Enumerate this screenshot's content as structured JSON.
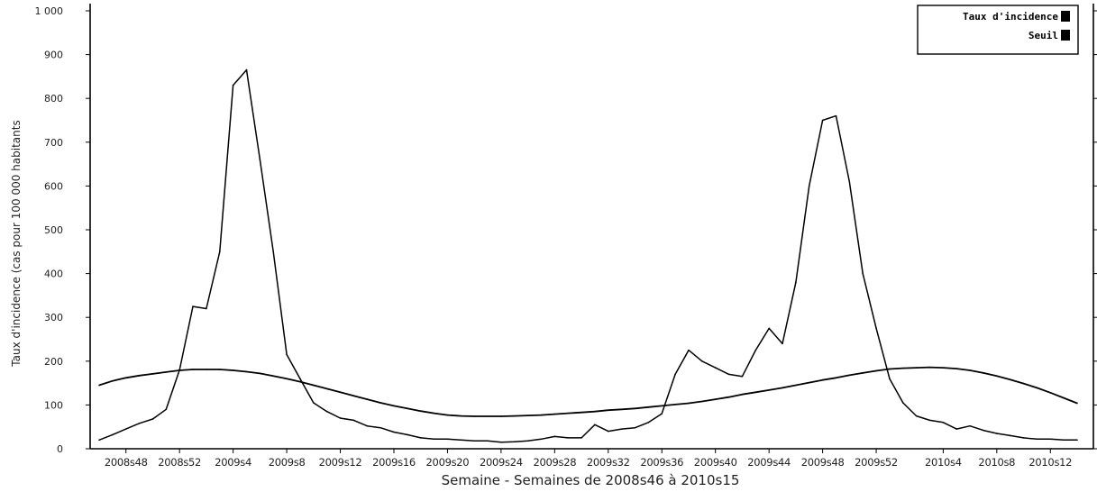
{
  "chart_data": {
    "type": "line",
    "title": "",
    "xlabel": "Semaine - Semaines de 2008s46 à 2010s15",
    "ylabel": "Taux d'incidence (cas pour 100 000 habitants",
    "ylim": [
      0,
      1000
    ],
    "yticks": [
      "0",
      "100",
      "200",
      "300",
      "400",
      "500",
      "600",
      "700",
      "800",
      "900",
      "1 000"
    ],
    "xticks": [
      {
        "week": 2,
        "label": "2008s48"
      },
      {
        "week": 6,
        "label": "2008s52"
      },
      {
        "week": 10,
        "label": "2009s4"
      },
      {
        "week": 14,
        "label": "2009s8"
      },
      {
        "week": 18,
        "label": "2009s12"
      },
      {
        "week": 22,
        "label": "2009s16"
      },
      {
        "week": 26,
        "label": "2009s20"
      },
      {
        "week": 30,
        "label": "2009s24"
      },
      {
        "week": 34,
        "label": "2009s28"
      },
      {
        "week": 38,
        "label": "2009s32"
      },
      {
        "week": 42,
        "label": "2009s36"
      },
      {
        "week": 46,
        "label": "2009s40"
      },
      {
        "week": 50,
        "label": "2009s44"
      },
      {
        "week": 54,
        "label": "2009s48"
      },
      {
        "week": 58,
        "label": "2009s52"
      },
      {
        "week": 63,
        "label": "2010s4"
      },
      {
        "week": 67,
        "label": "2010s8"
      },
      {
        "week": 71,
        "label": "2010s12"
      }
    ],
    "x_weeks": 74,
    "legend_position": "top-right",
    "series": [
      {
        "name": "Taux d'incidence",
        "values": [
          20,
          32,
          45,
          58,
          68,
          90,
          180,
          325,
          320,
          450,
          830,
          865,
          660,
          450,
          215,
          160,
          105,
          85,
          70,
          65,
          52,
          48,
          38,
          32,
          25,
          22,
          22,
          20,
          18,
          18,
          15,
          16,
          18,
          22,
          28,
          25,
          25,
          55,
          40,
          45,
          48,
          60,
          80,
          170,
          225,
          200,
          185,
          170,
          165,
          225,
          275,
          240,
          380,
          600,
          750,
          760,
          610,
          400,
          275,
          160,
          105,
          75,
          65,
          60,
          45,
          52,
          42,
          35,
          30,
          25,
          22,
          22,
          20,
          20
        ]
      },
      {
        "name": "Seuil",
        "values": [
          145,
          155,
          162,
          167,
          171,
          175,
          179,
          181,
          181,
          181,
          179,
          176,
          172,
          166,
          160,
          153,
          145,
          137,
          129,
          121,
          113,
          105,
          98,
          92,
          86,
          81,
          77,
          75,
          74,
          74,
          74,
          75,
          76,
          77,
          79,
          81,
          83,
          85,
          88,
          90,
          92,
          95,
          98,
          101,
          104,
          108,
          113,
          118,
          124,
          129,
          134,
          139,
          145,
          151,
          157,
          162,
          168,
          173,
          178,
          182,
          184,
          185,
          186,
          185,
          183,
          179,
          173,
          166,
          158,
          149,
          139,
          128,
          116,
          104
        ]
      }
    ]
  }
}
